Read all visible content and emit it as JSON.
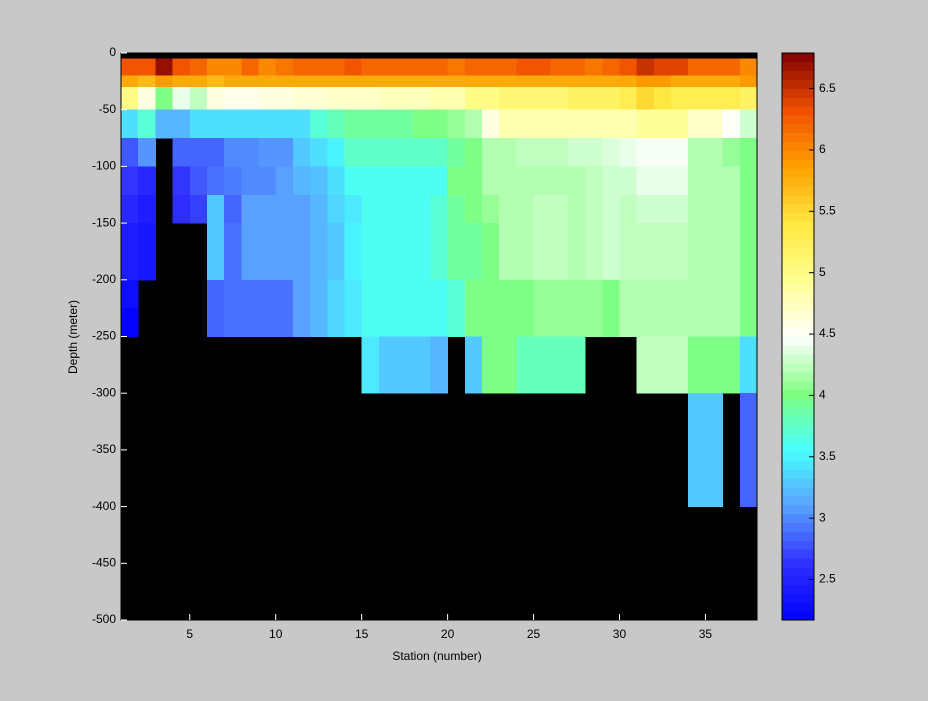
{
  "chart_data": {
    "type": "heatmap",
    "xlabel": "Station (number)",
    "ylabel": "Depth (meter)",
    "x_edges": [
      1,
      2,
      3,
      4,
      5,
      6,
      7,
      8,
      9,
      10,
      11,
      12,
      13,
      14,
      15,
      16,
      17,
      18,
      19,
      20,
      21,
      22,
      23,
      24,
      25,
      26,
      27,
      28,
      29,
      30,
      31,
      32,
      33,
      34,
      35,
      36,
      37,
      38
    ],
    "y_edges": [
      0,
      -5,
      -20,
      -30,
      -50,
      -75,
      -100,
      -125,
      -150,
      -175,
      -200,
      -225,
      -250,
      -300,
      -400,
      -500
    ],
    "z": [
      [
        null,
        null,
        null,
        null,
        null,
        null,
        null,
        null,
        null,
        null,
        null,
        null,
        null,
        null,
        null,
        null,
        null,
        null,
        null,
        null,
        null,
        null,
        null,
        null,
        null,
        null,
        null,
        null,
        null,
        null,
        null,
        null,
        null,
        null,
        null,
        null,
        null
      ],
      [
        6.3,
        6.3,
        6.7,
        6.3,
        6.2,
        6.0,
        6.0,
        6.2,
        6.0,
        6.1,
        6.2,
        6.2,
        6.2,
        6.3,
        6.2,
        6.2,
        6.2,
        6.2,
        6.2,
        6.1,
        6.2,
        6.2,
        6.2,
        6.3,
        6.3,
        6.2,
        6.2,
        6.1,
        6.2,
        6.3,
        6.5,
        6.4,
        6.4,
        6.2,
        6.2,
        6.2,
        6.0
      ],
      [
        5.8,
        5.7,
        5.9,
        5.8,
        5.8,
        5.7,
        5.8,
        5.8,
        5.8,
        5.8,
        5.8,
        5.8,
        5.8,
        5.8,
        5.8,
        5.8,
        5.8,
        5.8,
        5.8,
        5.8,
        5.8,
        5.8,
        5.8,
        5.8,
        5.8,
        5.8,
        5.8,
        5.8,
        5.8,
        5.8,
        5.9,
        5.9,
        5.8,
        5.8,
        5.8,
        5.8,
        5.9
      ],
      [
        5.0,
        4.6,
        4.0,
        4.4,
        4.25,
        4.6,
        4.55,
        4.55,
        4.6,
        4.6,
        4.65,
        4.65,
        4.7,
        4.7,
        4.7,
        4.75,
        4.75,
        4.75,
        4.8,
        4.8,
        5.0,
        5.0,
        5.1,
        5.1,
        5.1,
        5.1,
        5.2,
        5.2,
        5.2,
        5.3,
        5.5,
        5.4,
        5.3,
        5.3,
        5.3,
        5.3,
        5.2
      ],
      [
        3.4,
        3.7,
        3.2,
        3.2,
        3.4,
        3.4,
        3.4,
        3.4,
        3.4,
        3.4,
        3.4,
        3.7,
        3.8,
        3.9,
        3.9,
        3.9,
        3.9,
        4.0,
        4.0,
        4.1,
        4.2,
        4.6,
        4.8,
        4.8,
        4.8,
        4.8,
        4.8,
        4.8,
        4.8,
        4.8,
        4.9,
        4.9,
        4.9,
        4.7,
        4.7,
        4.5,
        4.3
      ],
      [
        2.8,
        3.05,
        null,
        2.85,
        2.85,
        2.85,
        3.0,
        3.0,
        3.05,
        3.05,
        3.3,
        3.4,
        3.5,
        3.75,
        3.75,
        3.75,
        3.75,
        3.75,
        3.75,
        3.9,
        4.0,
        4.2,
        4.2,
        4.25,
        4.25,
        4.25,
        4.3,
        4.3,
        4.35,
        4.4,
        4.45,
        4.45,
        4.45,
        4.2,
        4.2,
        4.1,
        4.0
      ],
      [
        2.65,
        2.55,
        null,
        2.65,
        2.8,
        2.9,
        2.95,
        3.0,
        3.0,
        3.1,
        3.2,
        3.25,
        3.4,
        3.6,
        3.6,
        3.6,
        3.6,
        3.6,
        3.6,
        4.0,
        4.0,
        4.2,
        4.2,
        4.2,
        4.2,
        4.2,
        4.2,
        4.25,
        4.3,
        4.3,
        4.4,
        4.4,
        4.4,
        4.2,
        4.2,
        4.2,
        4.0
      ],
      [
        2.55,
        2.45,
        null,
        2.6,
        2.7,
        3.3,
        2.85,
        3.1,
        3.1,
        3.1,
        3.1,
        3.2,
        3.35,
        3.45,
        3.6,
        3.6,
        3.6,
        3.6,
        3.7,
        3.9,
        4.0,
        4.1,
        4.2,
        4.2,
        4.25,
        4.25,
        4.2,
        4.25,
        4.3,
        4.25,
        4.3,
        4.3,
        4.3,
        4.2,
        4.2,
        4.2,
        4.0
      ],
      [
        2.45,
        2.4,
        null,
        null,
        null,
        3.3,
        2.9,
        3.1,
        3.1,
        3.1,
        3.1,
        3.2,
        3.3,
        3.5,
        3.6,
        3.6,
        3.6,
        3.6,
        3.7,
        3.9,
        3.9,
        4.0,
        4.2,
        4.2,
        4.25,
        4.25,
        4.2,
        4.25,
        4.3,
        4.25,
        4.25,
        4.25,
        4.25,
        4.2,
        4.2,
        4.2,
        4.0
      ],
      [
        2.45,
        2.4,
        null,
        null,
        null,
        3.3,
        2.9,
        3.1,
        3.1,
        3.1,
        3.1,
        3.2,
        3.3,
        3.5,
        3.6,
        3.6,
        3.6,
        3.6,
        3.7,
        3.9,
        3.9,
        4.0,
        4.2,
        4.2,
        4.25,
        4.25,
        4.2,
        4.25,
        4.3,
        4.25,
        4.25,
        4.25,
        4.25,
        4.2,
        4.2,
        4.2,
        4.0
      ],
      [
        2.3,
        null,
        null,
        null,
        null,
        2.85,
        2.9,
        2.9,
        2.9,
        2.9,
        3.1,
        3.2,
        3.35,
        3.45,
        3.6,
        3.6,
        3.6,
        3.6,
        3.6,
        3.7,
        4.0,
        4.0,
        4.0,
        4.0,
        4.1,
        4.1,
        4.1,
        4.1,
        4.0,
        4.2,
        4.2,
        4.2,
        4.2,
        4.2,
        4.2,
        4.2,
        4.0
      ],
      [
        2.2,
        null,
        null,
        null,
        null,
        2.85,
        2.9,
        2.9,
        2.9,
        2.9,
        3.1,
        3.2,
        3.35,
        3.45,
        3.6,
        3.6,
        3.6,
        3.6,
        3.6,
        3.7,
        4.0,
        4.0,
        4.0,
        4.0,
        4.1,
        4.1,
        4.1,
        4.1,
        4.0,
        4.2,
        4.2,
        4.2,
        4.2,
        4.2,
        4.2,
        4.2,
        4.0
      ],
      [
        null,
        null,
        null,
        null,
        null,
        null,
        null,
        null,
        null,
        null,
        null,
        null,
        null,
        null,
        3.45,
        3.3,
        3.3,
        3.3,
        3.2,
        null,
        3.3,
        4.0,
        4.0,
        3.8,
        3.8,
        3.8,
        3.8,
        null,
        null,
        null,
        4.25,
        4.25,
        4.25,
        4.0,
        4.0,
        4.0,
        3.4
      ],
      [
        null,
        null,
        null,
        null,
        null,
        null,
        null,
        null,
        null,
        null,
        null,
        null,
        null,
        null,
        null,
        null,
        null,
        null,
        null,
        null,
        null,
        null,
        null,
        null,
        null,
        null,
        null,
        null,
        null,
        null,
        null,
        null,
        null,
        3.3,
        3.3,
        null,
        2.85
      ],
      [
        null,
        null,
        null,
        null,
        null,
        null,
        null,
        null,
        null,
        null,
        null,
        null,
        null,
        null,
        null,
        null,
        null,
        null,
        null,
        null,
        null,
        null,
        null,
        null,
        null,
        null,
        null,
        null,
        null,
        null,
        null,
        null,
        null,
        null,
        null,
        null,
        null
      ]
    ],
    "xlim": [
      1,
      38
    ],
    "xticks": [
      5,
      10,
      15,
      20,
      25,
      30,
      35
    ],
    "ylim": [
      -500,
      0
    ],
    "yticks": [
      0,
      -50,
      -100,
      -150,
      -200,
      -250,
      -300,
      -350,
      -400,
      -450,
      -500
    ],
    "clim": [
      2.17,
      6.79
    ],
    "cticks": [
      2.5,
      3,
      3.5,
      4,
      4.5,
      5,
      5.5,
      6,
      6.5
    ],
    "colormap": [
      "#0000ff",
      "#3030ff",
      "#5aa0ff",
      "#48ffff",
      "#80ff80",
      "#ffffff",
      "#ffff90",
      "#ffe840",
      "#ffa000",
      "#f05000",
      "#800000"
    ],
    "missing_color": "#000000"
  }
}
